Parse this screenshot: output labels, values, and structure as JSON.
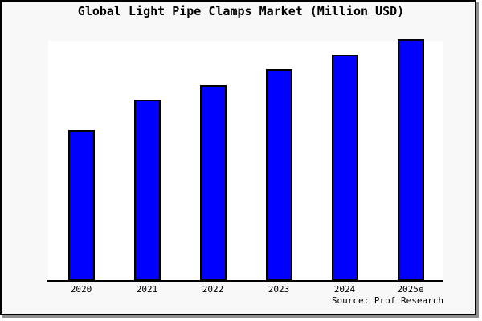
{
  "title": "Global Light Pipe Clamps Market (Million USD)",
  "source": "Source: Prof Research",
  "colors": {
    "bar_fill": "#0000ff",
    "bar_border": "#000000",
    "frame_background": "#f8f8f8",
    "plot_background": "#ffffff",
    "frame_border": "#000000",
    "frame_shadow": "#8f8f8f",
    "text": "#000000"
  },
  "chart_data": {
    "type": "bar",
    "title": "Global Light Pipe Clamps Market (Million USD)",
    "categories": [
      "2020",
      "2021",
      "2022",
      "2023",
      "2024",
      "2025e"
    ],
    "values": [
      62.5,
      75,
      81,
      87.7,
      93.7,
      100
    ],
    "series_note": "no y-axis or value labels shown; values are relative units estimated from bar heights with 2025e = 100",
    "xlabel": "",
    "ylabel": "",
    "ylim": [
      0,
      100
    ],
    "grid": false,
    "legend": false,
    "annotations": [
      "Source: Prof Research"
    ]
  }
}
